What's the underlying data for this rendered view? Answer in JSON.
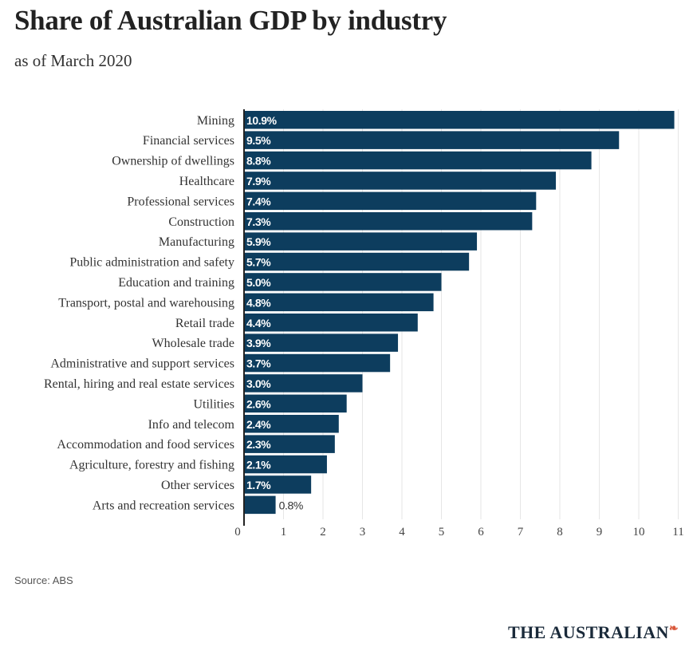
{
  "header": {
    "title": "Share of Australian GDP by industry",
    "subtitle": "as of March 2020"
  },
  "footer": {
    "source": "Source: ABS",
    "logo_text": "THE AUSTRALIAN",
    "logo_mark": "❧"
  },
  "colors": {
    "bar": "#0d3d5e",
    "bar_label_inside": "#ffffff",
    "bar_label_outside": "#333333",
    "gridline": "#e6e6e6",
    "axis": "#222222"
  },
  "chart_data": {
    "type": "bar",
    "orientation": "horizontal",
    "title": "Share of Australian GDP by industry",
    "subtitle": "as of March 2020",
    "xlabel": "",
    "ylabel": "",
    "xlim": [
      0,
      11
    ],
    "x_ticks": [
      0,
      1,
      2,
      3,
      4,
      5,
      6,
      7,
      8,
      9,
      10,
      11
    ],
    "grid": true,
    "categories": [
      "Mining",
      "Financial services",
      "Ownership of dwellings",
      "Healthcare",
      "Professional services",
      "Construction",
      "Manufacturing",
      "Public administration and safety",
      "Education and training",
      "Transport, postal and warehousing",
      "Retail trade",
      "Wholesale trade",
      "Administrative and support services",
      "Rental, hiring and real estate services",
      "Utilities",
      "Info and telecom",
      "Accommodation and food services",
      "Agriculture, forestry and fishing",
      "Other services",
      "Arts and recreation services"
    ],
    "values": [
      10.9,
      9.5,
      8.8,
      7.9,
      7.4,
      7.3,
      5.9,
      5.7,
      5.0,
      4.8,
      4.4,
      3.9,
      3.7,
      3.0,
      2.6,
      2.4,
      2.3,
      2.1,
      1.7,
      0.8
    ],
    "data_labels": [
      "10.9%",
      "9.5%",
      "8.8%",
      "7.9%",
      "7.4%",
      "7.3%",
      "5.9%",
      "5.7%",
      "5.0%",
      "4.8%",
      "4.4%",
      "3.9%",
      "3.7%",
      "3.0%",
      "2.6%",
      "2.4%",
      "2.3%",
      "2.1%",
      "1.7%",
      "0.8%"
    ]
  }
}
